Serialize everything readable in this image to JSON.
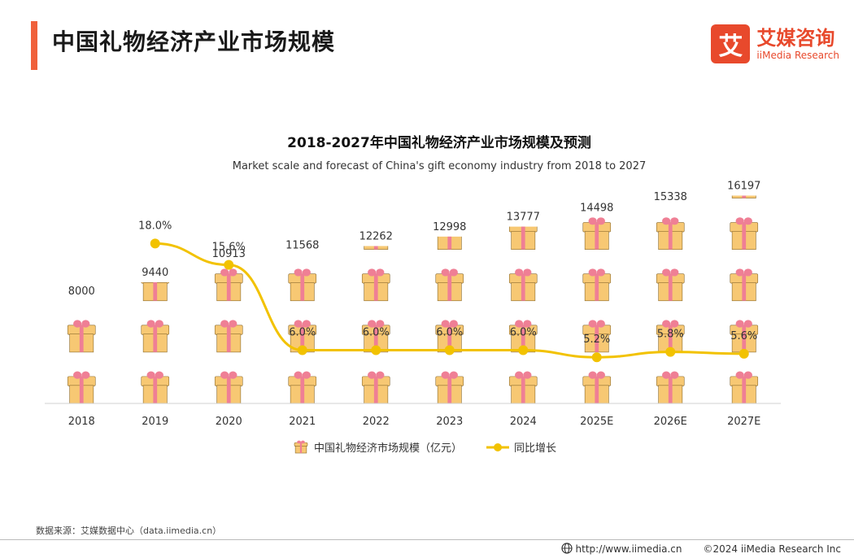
{
  "header": {
    "title": "中国礼物经济产业市场规模",
    "accent_color": "#f0603a"
  },
  "logo": {
    "mark": "艾",
    "name_cn": "艾媒咨询",
    "name_en": "iiMedia Research",
    "color": "#e8492c"
  },
  "chart_data": {
    "type": "bar",
    "title": "2018-2027年中国礼物经济产业市场规模及预测",
    "subtitle": "Market scale and forecast of China's gift economy industry from 2018 to 2027",
    "categories": [
      "2018",
      "2019",
      "2020",
      "2021",
      "2022",
      "2023",
      "2024",
      "2025E",
      "2026E",
      "2027E"
    ],
    "series": [
      {
        "name": "中国礼物经济市场规模（亿元）",
        "type": "bar",
        "icon": "gift-icon",
        "values": [
          8000,
          9440,
          10913,
          11568,
          12262,
          12998,
          13777,
          14498,
          15338,
          16197
        ],
        "labels": [
          "8000",
          "9440",
          "10913",
          "11568",
          "12262",
          "12998",
          "13777",
          "14498",
          "15338",
          "16197"
        ]
      },
      {
        "name": "同比增长",
        "type": "line",
        "color": "#f2c200",
        "values": [
          null,
          18.0,
          15.6,
          6.0,
          6.0,
          6.0,
          6.0,
          5.2,
          5.8,
          5.6
        ],
        "labels": [
          "",
          "18.0%",
          "15.6%",
          "6.0%",
          "6.0%",
          "6.0%",
          "6.0%",
          "5.2%",
          "5.8%",
          "5.6%"
        ]
      }
    ],
    "ylim": [
      0,
      18000
    ],
    "y2lim": [
      0,
      26
    ],
    "grid": false,
    "legend": "bottom"
  },
  "colors": {
    "gift_box": "#f7c873",
    "gift_ribbon": "#ef7f95",
    "line": "#f2c200"
  },
  "footer": {
    "source": "数据来源：艾媒数据中心（data.iimedia.cn）",
    "url": "http://www.iimedia.cn",
    "copyright": "©2024  iiMedia Research  Inc"
  }
}
